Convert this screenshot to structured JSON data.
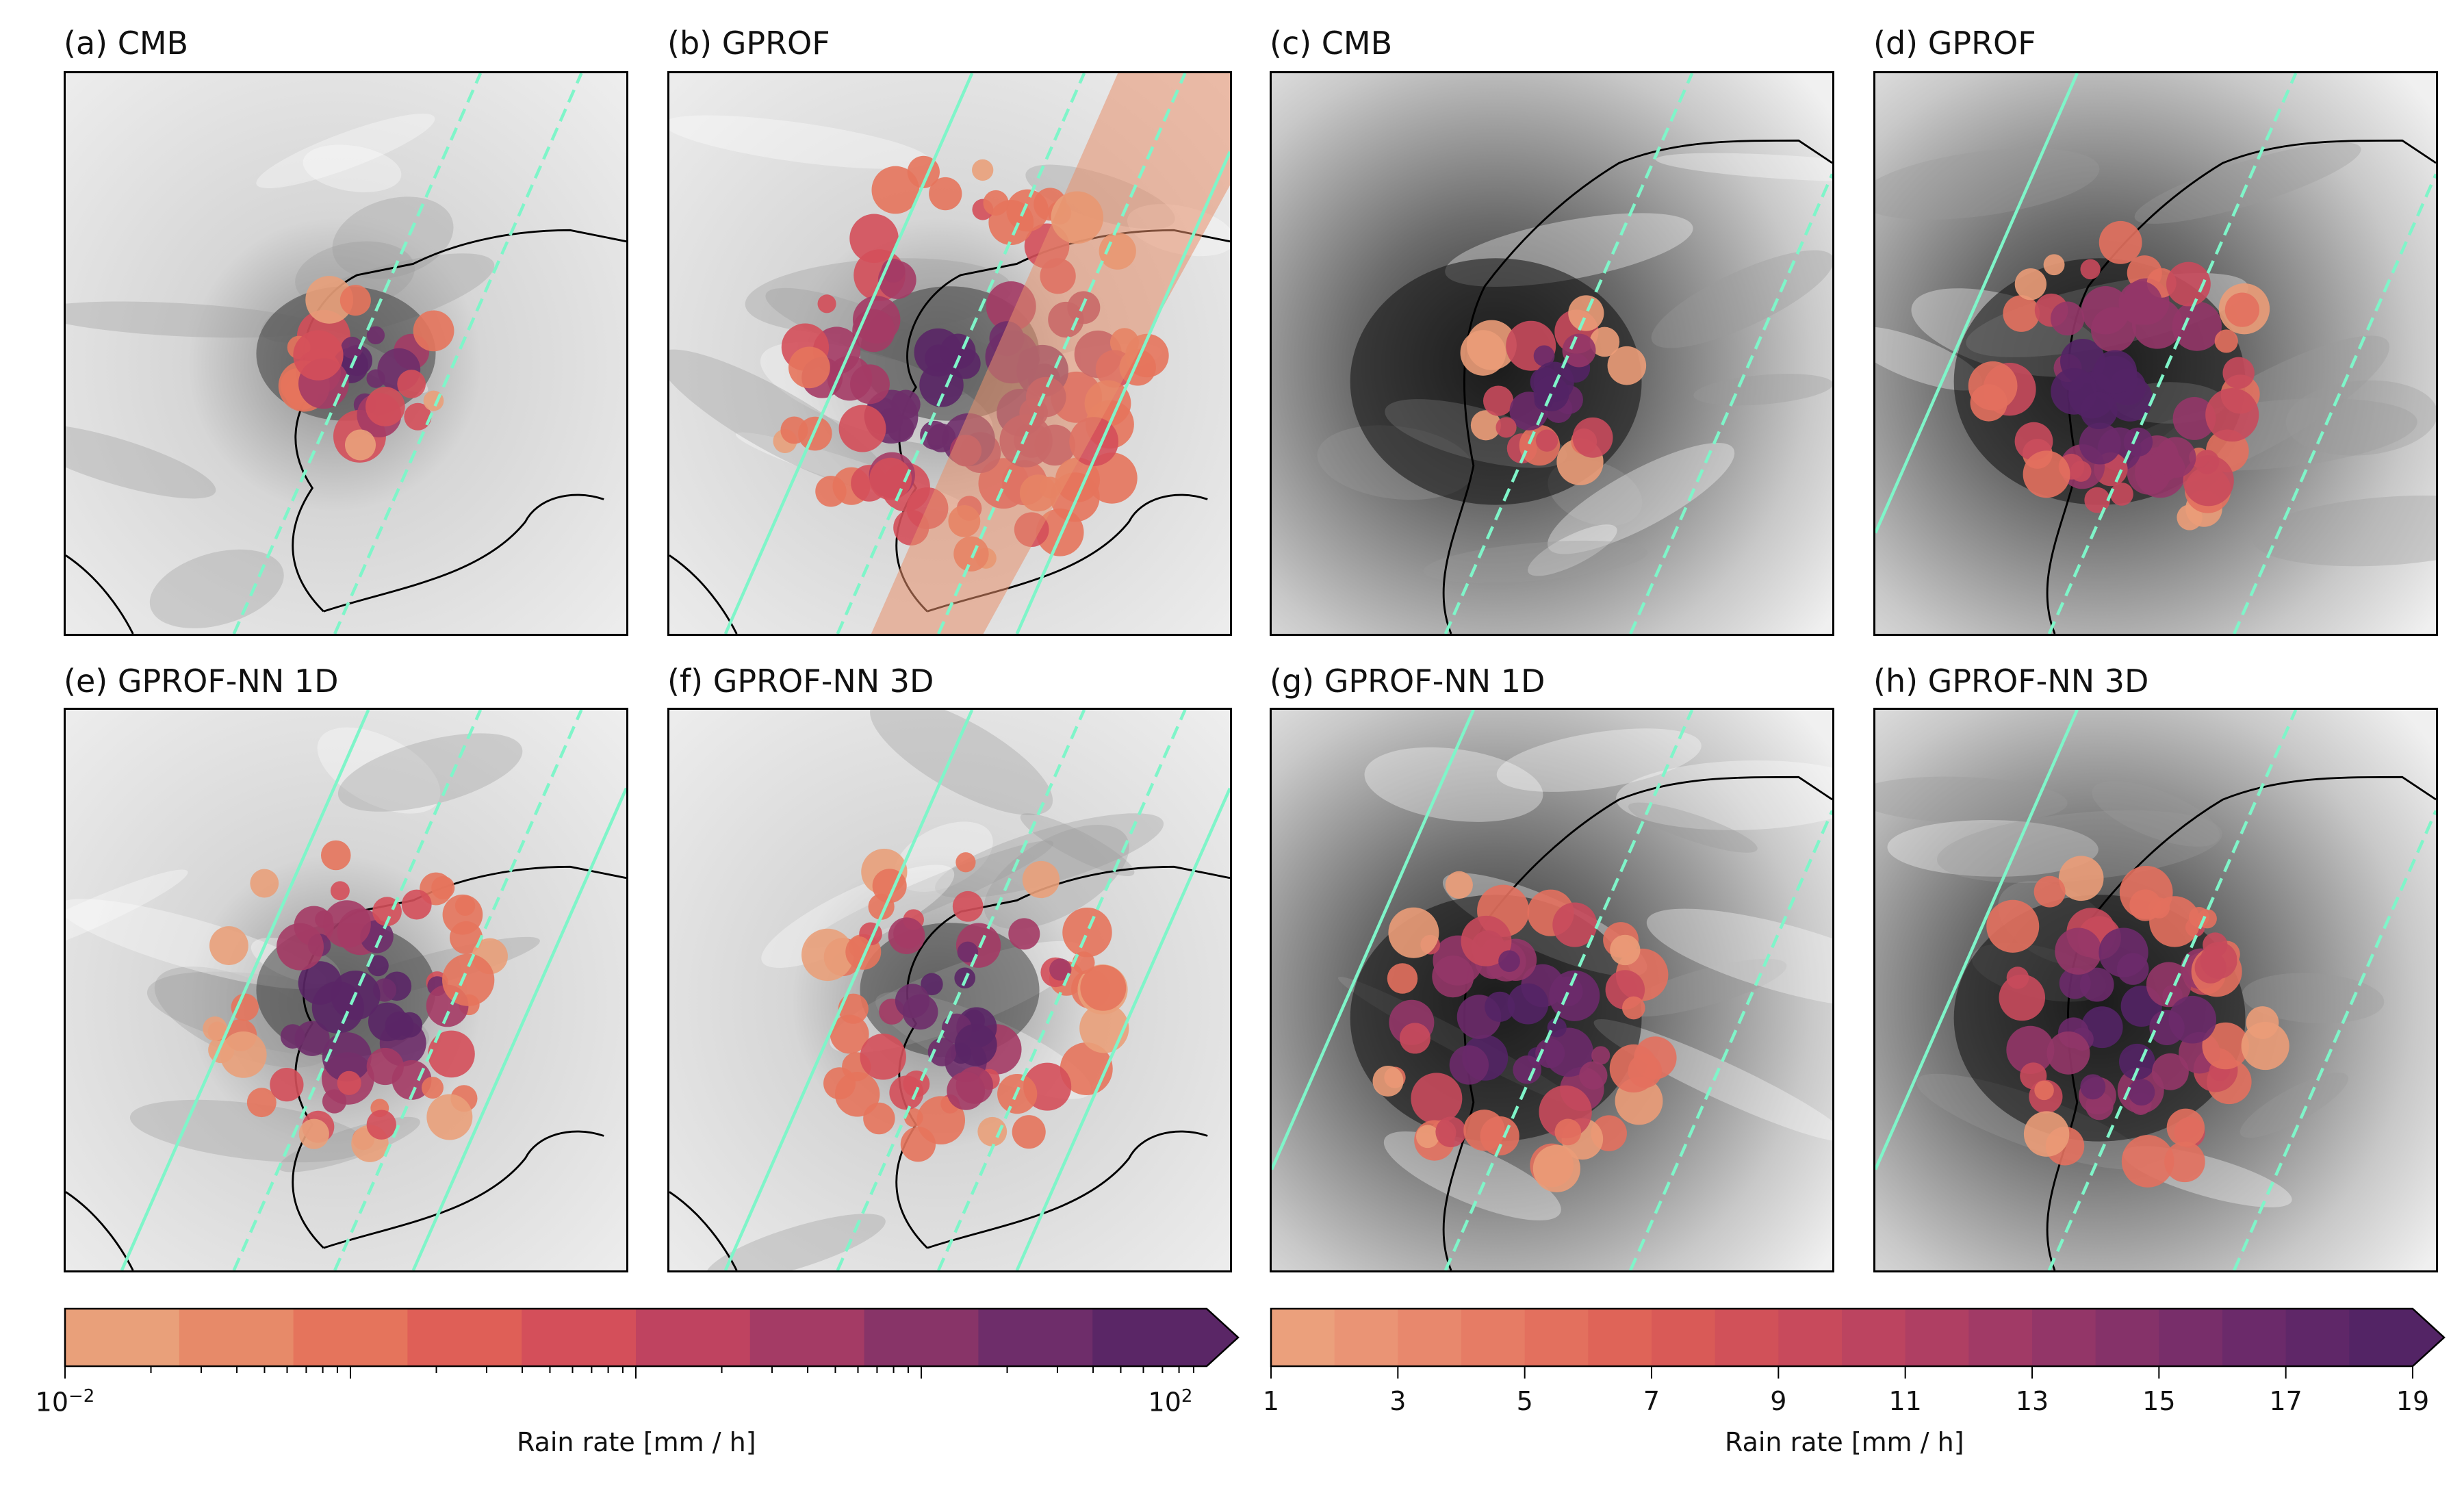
{
  "panels": [
    {
      "label": "(a) CMB",
      "kind": "cmb",
      "zoom": "wide"
    },
    {
      "label": "(b) GPROF",
      "kind": "gprof",
      "zoom": "wide"
    },
    {
      "label": "(c) CMB",
      "kind": "cmb",
      "zoom": "close"
    },
    {
      "label": "(d) GPROF",
      "kind": "gprof",
      "zoom": "close"
    },
    {
      "label": "(e) GPROF-NN 1D",
      "kind": "nn1d",
      "zoom": "wide"
    },
    {
      "label": "(f) GPROF-NN 3D",
      "kind": "nn3d",
      "zoom": "wide"
    },
    {
      "label": "(g) GPROF-NN 1D",
      "kind": "nn1d",
      "zoom": "close"
    },
    {
      "label": "(h) GPROF-NN 3D",
      "kind": "nn3d",
      "zoom": "close"
    }
  ],
  "colorbars": [
    {
      "label": "Rain rate [mm / h]",
      "scale": "log",
      "range": [
        0.01,
        100
      ],
      "ticks": [
        {
          "base": "10",
          "exp": "−2"
        },
        {
          "base": "10",
          "exp": "2"
        }
      ],
      "extend": "max",
      "colors": [
        "#e9a07a",
        "#e78a69",
        "#e5745c",
        "#df5f57",
        "#d44f5a",
        "#bf4360",
        "#a43b65",
        "#883468",
        "#6e2d6a",
        "#5a2666"
      ]
    },
    {
      "label": "Rain rate [mm / h]",
      "scale": "linear",
      "range": [
        1,
        19
      ],
      "ticks": [
        "1",
        "3",
        "5",
        "7",
        "9",
        "11",
        "13",
        "15",
        "17",
        "19"
      ],
      "extend": "max",
      "colors": [
        "#eba07c",
        "#ea9475",
        "#e8886d",
        "#e67c65",
        "#e3705e",
        "#df6458",
        "#d95a57",
        "#d15159",
        "#c84a5c",
        "#bc4460",
        "#af3f63",
        "#a13a66",
        "#933668",
        "#853269",
        "#782e6a",
        "#6b2a6a",
        "#5f2768",
        "#532465"
      ]
    }
  ],
  "colors": {
    "swath_line": "#7ff5c9",
    "coastline": "#000000"
  }
}
